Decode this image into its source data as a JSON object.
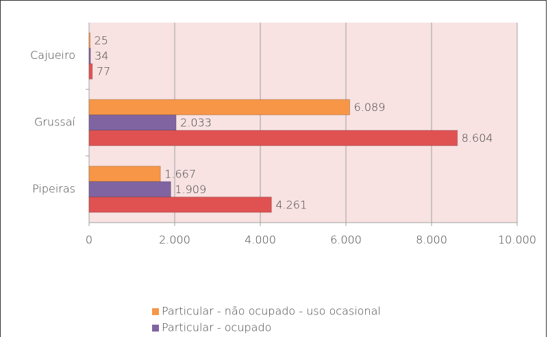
{
  "chart_data": {
    "type": "hbar",
    "categories": [
      "Cajueiro",
      "Grussaí",
      "Pipeiras"
    ],
    "series": [
      {
        "name": "Particular - não ocupado - uso ocasional",
        "color": "#f79646",
        "values": [
          25,
          6089,
          1667
        ],
        "value_labels": [
          "25",
          "6.089",
          "1.667"
        ]
      },
      {
        "name": "Particular - ocupado",
        "color": "#8064a2",
        "values": [
          34,
          2033,
          1909
        ],
        "value_labels": [
          "34",
          "2.033",
          "1.909"
        ]
      },
      {
        "color": "#e05252",
        "values": [
          77,
          8604,
          4261
        ],
        "value_labels": [
          "77",
          "8.604",
          "4.261"
        ]
      }
    ],
    "xlim": [
      0,
      10000
    ],
    "xticks": [
      0,
      {
        "value": 2000,
        "label": "2.000"
      },
      {
        "value": 4000,
        "label": "4.000"
      },
      {
        "value": 6000,
        "label": "6.000"
      },
      {
        "value": 8000,
        "label": "8.000"
      },
      {
        "value": 10000,
        "label": "10.000"
      }
    ],
    "grid": true,
    "plot_background": "#f8e2e2",
    "legend": "bottom"
  }
}
